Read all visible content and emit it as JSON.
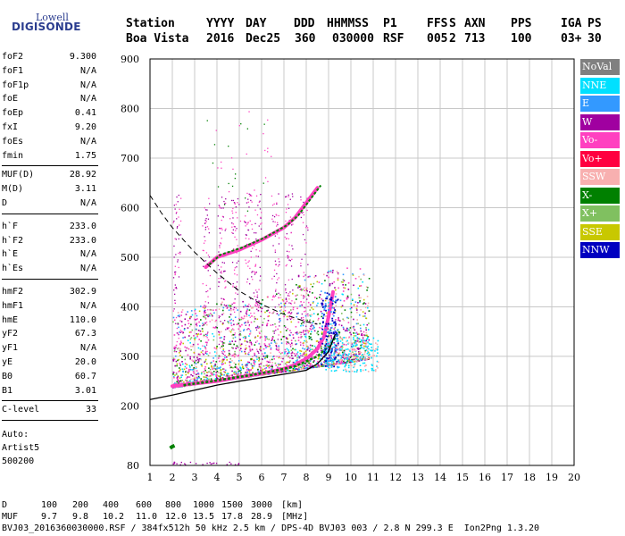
{
  "logo": {
    "top": "Lowell",
    "bottom": "DIGISONDE"
  },
  "header": {
    "columns": [
      {
        "label": "Station",
        "value": "Boa Vista"
      },
      {
        "label": "YYYY",
        "value": "2016"
      },
      {
        "label": "DAY",
        "value": "Dec25"
      },
      {
        "label": "DDD",
        "value": "360"
      },
      {
        "label": "HHMMSS",
        "value": "030000"
      },
      {
        "label": "P1",
        "value": "RSF"
      },
      {
        "label": "FFS",
        "value": "005"
      },
      {
        "label": "S",
        "value": "2"
      },
      {
        "label": "AXN",
        "value": "713"
      },
      {
        "label": "PPS",
        "value": "100"
      },
      {
        "label": "IGA",
        "value": "03+"
      },
      {
        "label": "PS",
        "value": "30"
      }
    ]
  },
  "params": {
    "group1": [
      {
        "name": "foF2",
        "value": "9.300"
      },
      {
        "name": "foF1",
        "value": "N/A"
      },
      {
        "name": "foF1p",
        "value": "N/A"
      },
      {
        "name": "foE",
        "value": "N/A"
      },
      {
        "name": "foEp",
        "value": "0.41"
      },
      {
        "name": "fxI",
        "value": "9.20"
      },
      {
        "name": "foEs",
        "value": "N/A"
      },
      {
        "name": "fmin",
        "value": "1.75"
      }
    ],
    "group2": [
      {
        "name": "MUF(D)",
        "value": "28.92"
      },
      {
        "name": "M(D)",
        "value": "3.11"
      },
      {
        "name": "D",
        "value": "N/A"
      }
    ],
    "group3": [
      {
        "name": "h`F",
        "value": "233.0"
      },
      {
        "name": "h`F2",
        "value": "233.0"
      },
      {
        "name": "h`E",
        "value": "N/A"
      },
      {
        "name": "h`Es",
        "value": "N/A"
      }
    ],
    "group4": [
      {
        "name": "hmF2",
        "value": "302.9"
      },
      {
        "name": "hmF1",
        "value": "N/A"
      },
      {
        "name": "hmE",
        "value": "110.0"
      },
      {
        "name": "yF2",
        "value": "67.3"
      },
      {
        "name": "yF1",
        "value": "N/A"
      },
      {
        "name": "yE",
        "value": "20.0"
      },
      {
        "name": "B0",
        "value": "60.7"
      },
      {
        "name": "B1",
        "value": "3.01"
      }
    ],
    "group5": [
      {
        "name": "C-level",
        "value": "33"
      }
    ],
    "auto": [
      "Auto:",
      "Artist5",
      "500200"
    ]
  },
  "legend": [
    {
      "label": "NoVal",
      "color": "#808080"
    },
    {
      "label": "NNE",
      "color": "#00e0ff"
    },
    {
      "label": "E",
      "color": "#3399ff"
    },
    {
      "label": "W",
      "color": "#a000a0"
    },
    {
      "label": "Vo-",
      "color": "#ff40c0"
    },
    {
      "label": "Vo+",
      "color": "#ff0040"
    },
    {
      "label": "SSW",
      "color": "#f8b0b0"
    },
    {
      "label": "X-",
      "color": "#008000"
    },
    {
      "label": "X+",
      "color": "#80c060"
    },
    {
      "label": "SSE",
      "color": "#c8c800"
    },
    {
      "label": "NNW",
      "color": "#0000c0"
    }
  ],
  "bottom": {
    "d_label": "D",
    "d_values": [
      "100",
      "200",
      "400",
      "600",
      "800",
      "1000",
      "1500",
      "3000",
      "[km]"
    ],
    "muf_label": "MUF",
    "muf_values": [
      "9.7",
      "9.8",
      "10.2",
      "11.0",
      "12.0",
      "13.5",
      "17.8",
      "28.9",
      "[MHz]"
    ],
    "footer": "BVJ03_2016360030000.RSF / 384fx512h 50 kHz 2.5 km / DPS-4D BVJ03 003 / 2.8 N 299.3 E  Ion2Png 1.3.20"
  },
  "chart_data": {
    "type": "scatter",
    "xlim": [
      1,
      20
    ],
    "ylim": [
      80,
      900
    ],
    "x_ticks": [
      "1",
      "2",
      "3",
      "4",
      "5",
      "6",
      "7",
      "8",
      "9",
      "10",
      "11",
      "12",
      "13",
      "14",
      "15",
      "16",
      "17",
      "18",
      "19",
      "20"
    ],
    "y_ticks": [
      "80",
      "200",
      "300",
      "400",
      "500",
      "600",
      "700",
      "800",
      "900"
    ],
    "grid": true,
    "legend_position": "right",
    "traces": {
      "o_trace_F": [
        [
          2.0,
          240
        ],
        [
          3.0,
          245
        ],
        [
          4.0,
          250
        ],
        [
          5.0,
          258
        ],
        [
          6.0,
          265
        ],
        [
          7.0,
          275
        ],
        [
          7.5,
          283
        ],
        [
          8.0,
          295
        ],
        [
          8.5,
          315
        ],
        [
          8.8,
          340
        ],
        [
          9.0,
          380
        ],
        [
          9.2,
          430
        ]
      ],
      "x_trace_F": [
        [
          2.5,
          242
        ],
        [
          3.5,
          248
        ],
        [
          4.5,
          255
        ],
        [
          5.5,
          262
        ],
        [
          6.5,
          270
        ],
        [
          7.5,
          280
        ],
        [
          8.5,
          300
        ],
        [
          9.0,
          320
        ],
        [
          9.5,
          350
        ]
      ],
      "multihop": [
        [
          3.5,
          480
        ],
        [
          4.0,
          500
        ],
        [
          5.0,
          515
        ],
        [
          6.0,
          535
        ],
        [
          7.0,
          560
        ],
        [
          7.5,
          580
        ],
        [
          8.0,
          610
        ],
        [
          8.5,
          640
        ]
      ],
      "e_region_echo": [
        [
          1.9,
          115
        ],
        [
          2.0,
          118
        ],
        [
          2.1,
          120
        ]
      ]
    },
    "profile_curve": [
      [
        1.0,
        213
      ],
      [
        2.0,
        222
      ],
      [
        3.0,
        232
      ],
      [
        4.0,
        242
      ],
      [
        5.0,
        250
      ],
      [
        6.0,
        257
      ],
      [
        7.0,
        264
      ],
      [
        8.0,
        272
      ],
      [
        8.5,
        285
      ],
      [
        9.0,
        310
      ],
      [
        9.3,
        345
      ]
    ],
    "muf_curve": [
      [
        1.0,
        625
      ],
      [
        1.5,
        590
      ],
      [
        2.0,
        560
      ],
      [
        3.0,
        510
      ],
      [
        4.0,
        468
      ],
      [
        5.0,
        432
      ],
      [
        6.0,
        405
      ],
      [
        7.0,
        385
      ],
      [
        8.0,
        370
      ],
      [
        8.5,
        365
      ]
    ],
    "fmin_mhz": 1.75,
    "foF2_mhz": 9.3
  }
}
